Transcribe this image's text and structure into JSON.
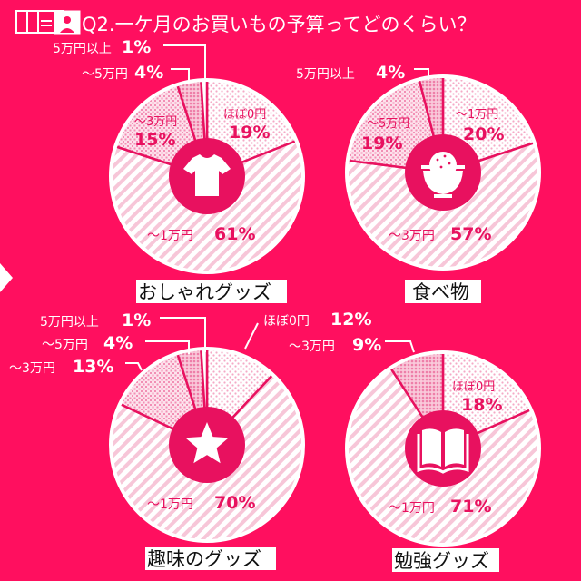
{
  "title": "Q2.一ケ月のお買いもの予算ってどのくらい？",
  "colors": {
    "background": "#ff0f5f",
    "accent": "#e8115f",
    "pie_base": "#ffffff",
    "pattern": "#f7b8cf",
    "border": "#ffffff",
    "name_box": "#ffffff"
  },
  "icons": [
    "document-stack-icon",
    "tshirt-icon",
    "rice-bowl-icon",
    "star-icon",
    "book-icon"
  ],
  "chart_data": [
    {
      "type": "pie",
      "title": "おしゃれグッズ",
      "icon": "tshirt-icon",
      "slices": [
        {
          "label": "ほぼ0円",
          "value": 19,
          "text": "19%",
          "pattern": "dots"
        },
        {
          "label": "～1万円",
          "value": 61,
          "text": "61%",
          "pattern": "stripes"
        },
        {
          "label": "～3万円",
          "value": 15,
          "text": "15%",
          "pattern": "cross"
        },
        {
          "label": "～5万円",
          "value": 4,
          "text": "4%",
          "pattern": "dense"
        },
        {
          "label": "5万円以上",
          "value": 1,
          "text": "1%",
          "pattern": "plain"
        }
      ]
    },
    {
      "type": "pie",
      "title": "食べ物",
      "icon": "rice-bowl-icon",
      "slices": [
        {
          "label": "～1万円",
          "value": 20,
          "text": "20%",
          "pattern": "dots"
        },
        {
          "label": "～3万円",
          "value": 57,
          "text": "57%",
          "pattern": "stripes"
        },
        {
          "label": "～5万円",
          "value": 19,
          "text": "19%",
          "pattern": "cross"
        },
        {
          "label": "5万円以上",
          "value": 4,
          "text": "4%",
          "pattern": "dense"
        }
      ]
    },
    {
      "type": "pie",
      "title": "趣味のグッズ",
      "icon": "star-icon",
      "slices": [
        {
          "label": "ほぼ0円",
          "value": 12,
          "text": "12%",
          "pattern": "dots"
        },
        {
          "label": "～1万円",
          "value": 70,
          "text": "70%",
          "pattern": "stripes"
        },
        {
          "label": "～3万円",
          "value": 13,
          "text": "13%",
          "pattern": "cross"
        },
        {
          "label": "～5万円",
          "value": 4,
          "text": "4%",
          "pattern": "dense"
        },
        {
          "label": "5万円以上",
          "value": 1,
          "text": "1%",
          "pattern": "plain"
        }
      ]
    },
    {
      "type": "pie",
      "title": "勉強グッズ",
      "icon": "book-icon",
      "slices": [
        {
          "label": "ほぼ0円",
          "value": 18,
          "text": "18%",
          "pattern": "dots"
        },
        {
          "label": "～1万円",
          "value": 71,
          "text": "71%",
          "pattern": "stripes"
        },
        {
          "label": "～3万円",
          "value": 9,
          "text": "9%",
          "pattern": "dense"
        }
      ]
    }
  ]
}
